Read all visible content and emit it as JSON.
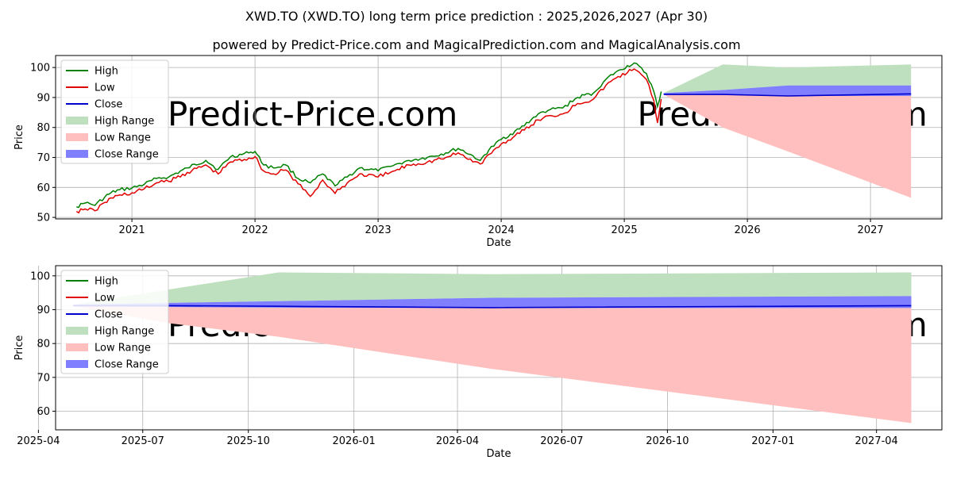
{
  "title": "XWD.TO (XWD.TO) long term price prediction : 2025,2026,2027 (Apr 30)",
  "subtitle": "powered by Predict-Price.com and MagicalPrediction.com and MagicalAnalysis.com",
  "watermark": "Predict-Price.com",
  "colors": {
    "high": "#008000",
    "low": "#e00000",
    "close": "#0000cc",
    "high_range": "#bfe0bf",
    "low_range": "#ffbfbf",
    "close_range": "#7f7fff",
    "grid": "#b0b0b0",
    "watermark": "#f2f2f2"
  },
  "legend": [
    "High",
    "Low",
    "Close",
    "High Range",
    "Low Range",
    "Close Range"
  ],
  "chart_data": [
    {
      "type": "line",
      "xlabel": "Date",
      "ylabel": "Price",
      "xlim": [
        2020.38,
        2027.58
      ],
      "ylim": [
        49.5,
        104
      ],
      "xticks": [
        {
          "label": "2021",
          "x": 2021.0
        },
        {
          "label": "2022",
          "x": 2022.0
        },
        {
          "label": "2023",
          "x": 2023.0
        },
        {
          "label": "2024",
          "x": 2024.0
        },
        {
          "label": "2025",
          "x": 2025.0
        },
        {
          "label": "2026",
          "x": 2026.0
        },
        {
          "label": "2027",
          "x": 2027.0
        }
      ],
      "yticks": [
        50,
        60,
        70,
        80,
        90,
        100
      ],
      "grid": true,
      "legend_position": "upper-left",
      "history": {
        "x": [
          2020.55,
          2020.62,
          2020.7,
          2020.78,
          2020.83,
          2020.9,
          2021.0,
          2021.1,
          2021.2,
          2021.3,
          2021.45,
          2021.6,
          2021.7,
          2021.8,
          2021.95,
          2022.0,
          2022.07,
          2022.15,
          2022.25,
          2022.35,
          2022.45,
          2022.55,
          2022.65,
          2022.75,
          2022.85,
          2023.0,
          2023.1,
          2023.25,
          2023.4,
          2023.55,
          2023.65,
          2023.75,
          2023.83,
          2023.9,
          2024.0,
          2024.15,
          2024.3,
          2024.4,
          2024.5,
          2024.62,
          2024.75,
          2024.85,
          2024.95,
          2025.08,
          2025.18,
          2025.24,
          2025.27,
          2025.3
        ],
        "high": [
          53.5,
          54.8,
          54,
          56.8,
          58.2,
          59.2,
          59.8,
          61,
          63,
          63.5,
          66.5,
          69,
          66,
          70.2,
          71.5,
          72,
          67.5,
          66.5,
          67.5,
          63,
          61.5,
          64.5,
          60.5,
          63.5,
          66.5,
          65.5,
          67,
          69,
          70,
          71.5,
          73,
          71,
          69,
          72.5,
          76,
          79.5,
          84.5,
          86,
          86.5,
          90,
          91.5,
          96,
          99,
          101.5,
          98,
          92,
          87,
          92
        ],
        "low": [
          52,
          52.8,
          52.2,
          55,
          56.5,
          57.5,
          58.2,
          59.5,
          61.5,
          62,
          65,
          67.5,
          64.5,
          68.5,
          69.8,
          70.3,
          65.5,
          64.5,
          65.8,
          61.2,
          57,
          62.5,
          58,
          61.5,
          64.5,
          63.5,
          65,
          67.5,
          68.5,
          70,
          71.5,
          69.5,
          67.8,
          71,
          74.5,
          78,
          82.5,
          84,
          84.5,
          88,
          89.5,
          94,
          97,
          99.5,
          96,
          89,
          81.5,
          89.5
        ]
      },
      "forecast": {
        "x": [
          2025.32,
          2025.8,
          2026.33,
          2027.33
        ],
        "high_upper": [
          91.5,
          101,
          100,
          101
        ],
        "close_upper": [
          91.5,
          92.5,
          94,
          94
        ],
        "close_lower": [
          91,
          90.8,
          90.5,
          90.5
        ],
        "low_lower": [
          91,
          80,
          72,
          56.5
        ],
        "close": [
          91,
          91,
          90.5,
          91.2
        ]
      }
    },
    {
      "type": "area",
      "xlabel": "Date",
      "ylabel": "Price",
      "xlim": [
        2025.288,
        2027.403
      ],
      "ylim": [
        54.5,
        103
      ],
      "xticks": [
        {
          "label": "2025-04",
          "x": 2025.247
        },
        {
          "label": "2025-07",
          "x": 2025.496
        },
        {
          "label": "2025-10",
          "x": 2025.748
        },
        {
          "label": "2026-01",
          "x": 2026.0
        },
        {
          "label": "2026-04",
          "x": 2026.247
        },
        {
          "label": "2026-07",
          "x": 2026.496
        },
        {
          "label": "2026-10",
          "x": 2026.748
        },
        {
          "label": "2027-01",
          "x": 2027.0
        },
        {
          "label": "2027-04",
          "x": 2027.247
        }
      ],
      "yticks": [
        60,
        70,
        80,
        90,
        100
      ],
      "grid": true,
      "legend_position": "upper-left",
      "forecast": {
        "x": [
          2025.33,
          2025.56,
          2025.82,
          2026.33,
          2027.33
        ],
        "high_upper": [
          91.5,
          96,
          101,
          100.5,
          101
        ],
        "close_upper": [
          91.5,
          92,
          92.5,
          93.5,
          94
        ],
        "close_lower": [
          91,
          90.8,
          90.6,
          90.5,
          90.5
        ],
        "low_lower": [
          91,
          86,
          82,
          72.5,
          56.5
        ],
        "close": [
          91.2,
          91.2,
          91,
          90.6,
          91.2
        ]
      }
    }
  ]
}
